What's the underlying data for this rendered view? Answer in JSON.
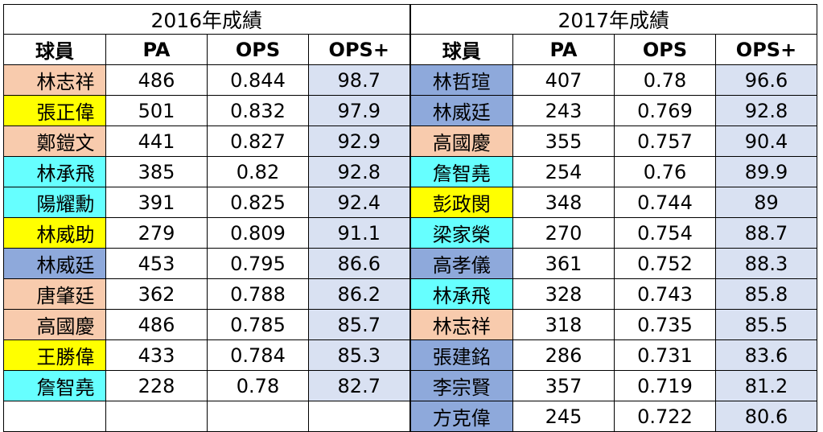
{
  "colors": {
    "peach": "#f8cbad",
    "yellow": "#ffff00",
    "cyan": "#66ffff",
    "blue": "#8ea9db",
    "lavender": "#d9e1f2"
  },
  "sections": [
    {
      "title": "2016年成績",
      "headers": [
        "球員",
        "PA",
        "OPS",
        "OPS+"
      ],
      "rows": [
        {
          "name": "林志祥",
          "color": "peach",
          "pa": "486",
          "ops": "0.844",
          "opsplus": "98.7"
        },
        {
          "name": "張正偉",
          "color": "yellow",
          "pa": "501",
          "ops": "0.832",
          "opsplus": "97.9"
        },
        {
          "name": "鄭鎧文",
          "color": "peach",
          "pa": "441",
          "ops": "0.827",
          "opsplus": "92.9"
        },
        {
          "name": "林承飛",
          "color": "cyan",
          "pa": "385",
          "ops": "0.82",
          "opsplus": "92.8"
        },
        {
          "name": "陽耀勳",
          "color": "cyan",
          "pa": "391",
          "ops": "0.825",
          "opsplus": "92.4"
        },
        {
          "name": "林威助",
          "color": "yellow",
          "pa": "279",
          "ops": "0.809",
          "opsplus": "91.1"
        },
        {
          "name": "林威廷",
          "color": "blue",
          "pa": "453",
          "ops": "0.795",
          "opsplus": "86.6"
        },
        {
          "name": "唐肇廷",
          "color": "peach",
          "pa": "362",
          "ops": "0.788",
          "opsplus": "86.2"
        },
        {
          "name": "高國慶",
          "color": "peach",
          "pa": "486",
          "ops": "0.785",
          "opsplus": "85.7"
        },
        {
          "name": "王勝偉",
          "color": "yellow",
          "pa": "433",
          "ops": "0.784",
          "opsplus": "85.3"
        },
        {
          "name": "詹智堯",
          "color": "cyan",
          "pa": "228",
          "ops": "0.78",
          "opsplus": "82.7"
        },
        {
          "name": "",
          "color": "",
          "pa": "",
          "ops": "",
          "opsplus": ""
        }
      ]
    },
    {
      "title": "2017年成績",
      "headers": [
        "球員",
        "PA",
        "OPS",
        "OPS+"
      ],
      "rows": [
        {
          "name": "林哲瑄",
          "color": "blue",
          "pa": "407",
          "ops": "0.78",
          "opsplus": "96.6"
        },
        {
          "name": "林威廷",
          "color": "blue",
          "pa": "243",
          "ops": "0.769",
          "opsplus": "92.8"
        },
        {
          "name": "高國慶",
          "color": "peach",
          "pa": "355",
          "ops": "0.757",
          "opsplus": "90.4"
        },
        {
          "name": "詹智堯",
          "color": "cyan",
          "pa": "254",
          "ops": "0.76",
          "opsplus": "89.9"
        },
        {
          "name": "彭政閔",
          "color": "yellow",
          "pa": "348",
          "ops": "0.744",
          "opsplus": "89"
        },
        {
          "name": "梁家榮",
          "color": "cyan",
          "pa": "270",
          "ops": "0.754",
          "opsplus": "88.7"
        },
        {
          "name": "高孝儀",
          "color": "blue",
          "pa": "361",
          "ops": "0.752",
          "opsplus": "88.3"
        },
        {
          "name": "林承飛",
          "color": "cyan",
          "pa": "328",
          "ops": "0.743",
          "opsplus": "85.8"
        },
        {
          "name": "林志祥",
          "color": "peach",
          "pa": "318",
          "ops": "0.735",
          "opsplus": "85.5"
        },
        {
          "name": "張建銘",
          "color": "blue",
          "pa": "286",
          "ops": "0.731",
          "opsplus": "83.6"
        },
        {
          "name": "李宗賢",
          "color": "blue",
          "pa": "357",
          "ops": "0.719",
          "opsplus": "81.2"
        },
        {
          "name": "方克偉",
          "color": "blue",
          "pa": "245",
          "ops": "0.722",
          "opsplus": "80.6"
        }
      ]
    }
  ]
}
